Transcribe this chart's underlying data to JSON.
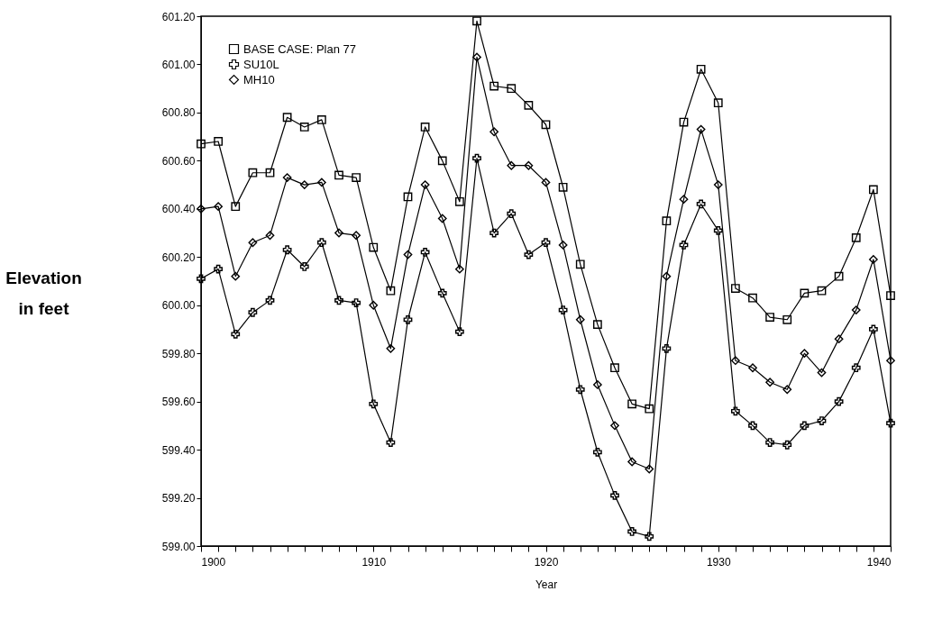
{
  "chart_data": {
    "type": "line",
    "xlabel": "Year",
    "ylabel": "Elevation in feet",
    "x": [
      1900,
      1901,
      1902,
      1903,
      1904,
      1905,
      1906,
      1907,
      1908,
      1909,
      1910,
      1911,
      1912,
      1913,
      1914,
      1915,
      1916,
      1917,
      1918,
      1919,
      1920,
      1921,
      1922,
      1923,
      1924,
      1925,
      1926,
      1927,
      1928,
      1929,
      1930,
      1931,
      1932,
      1933,
      1934,
      1935,
      1936,
      1937,
      1938,
      1939,
      1940
    ],
    "series": [
      {
        "name": "BASE CASE: Plan 77",
        "color": "#000000",
        "marker": "square",
        "values": [
          600.67,
          600.68,
          600.41,
          600.55,
          600.55,
          600.78,
          600.74,
          600.77,
          600.54,
          600.53,
          600.24,
          600.06,
          600.45,
          600.74,
          600.6,
          600.43,
          601.18,
          600.91,
          600.9,
          600.83,
          600.75,
          600.49,
          600.17,
          599.92,
          599.74,
          599.59,
          599.57,
          600.35,
          600.76,
          600.98,
          600.84,
          600.07,
          600.03,
          599.95,
          599.94,
          600.05,
          600.06,
          600.12,
          600.28,
          600.48,
          600.04
        ]
      },
      {
        "name": "SU10L",
        "color": "#000000",
        "marker": "cross",
        "values": [
          600.11,
          600.15,
          599.88,
          599.97,
          600.02,
          600.23,
          600.16,
          600.26,
          600.02,
          600.01,
          599.59,
          599.43,
          599.94,
          600.22,
          600.05,
          599.89,
          600.61,
          600.3,
          600.38,
          600.21,
          600.26,
          599.98,
          599.65,
          599.39,
          599.21,
          599.06,
          599.04,
          599.82,
          600.25,
          600.42,
          600.31,
          599.56,
          599.5,
          599.43,
          599.42,
          599.5,
          599.52,
          599.6,
          599.74,
          599.9,
          599.51
        ]
      },
      {
        "name": "MH10",
        "color": "#000000",
        "marker": "diamond",
        "values": [
          600.4,
          600.41,
          600.12,
          600.26,
          600.29,
          600.53,
          600.5,
          600.51,
          600.3,
          600.29,
          600.0,
          599.82,
          600.21,
          600.5,
          600.36,
          600.15,
          601.03,
          600.72,
          600.58,
          600.58,
          600.51,
          600.25,
          599.94,
          599.67,
          599.5,
          599.35,
          599.32,
          600.12,
          600.44,
          600.73,
          600.5,
          599.77,
          599.74,
          599.68,
          599.65,
          599.8,
          599.72,
          599.86,
          599.98,
          600.19,
          599.77
        ]
      }
    ],
    "xlim": [
      1900,
      1940
    ],
    "xticks": [
      1900,
      {
        "value": 1901,
        "label": null
      },
      {
        "value": 1902,
        "label": null
      },
      {
        "value": 1903,
        "label": null
      },
      {
        "value": 1904,
        "label": null
      },
      {
        "value": 1905,
        "label": null
      },
      {
        "value": 1906,
        "label": null
      },
      {
        "value": 1907,
        "label": null
      },
      {
        "value": 1908,
        "label": null
      },
      {
        "value": 1909,
        "label": null
      },
      1910,
      {
        "value": 1911,
        "label": null
      },
      {
        "value": 1912,
        "label": null
      },
      {
        "value": 1913,
        "label": null
      },
      {
        "value": 1914,
        "label": null
      },
      {
        "value": 1915,
        "label": null
      },
      {
        "value": 1916,
        "label": null
      },
      {
        "value": 1917,
        "label": null
      },
      {
        "value": 1918,
        "label": null
      },
      {
        "value": 1919,
        "label": null
      },
      1920,
      {
        "value": 1921,
        "label": null
      },
      {
        "value": 1922,
        "label": null
      },
      {
        "value": 1923,
        "label": null
      },
      {
        "value": 1924,
        "label": null
      },
      {
        "value": 1925,
        "label": null
      },
      {
        "value": 1926,
        "label": null
      },
      {
        "value": 1927,
        "label": null
      },
      {
        "value": 1928,
        "label": null
      },
      {
        "value": 1929,
        "label": null
      },
      1930,
      {
        "value": 1931,
        "label": null
      },
      {
        "value": 1932,
        "label": null
      },
      {
        "value": 1933,
        "label": null
      },
      {
        "value": 1934,
        "label": null
      },
      {
        "value": 1935,
        "label": null
      },
      {
        "value": 1936,
        "label": null
      },
      {
        "value": 1937,
        "label": null
      },
      {
        "value": 1938,
        "label": null
      },
      {
        "value": 1939,
        "label": null
      },
      1940
    ],
    "ylim": [
      599.0,
      601.2
    ],
    "yticks": [
      {
        "value": 599.0,
        "label": "599.00"
      },
      {
        "value": 599.2,
        "label": "599.20"
      },
      {
        "value": 599.4,
        "label": "599.40"
      },
      {
        "value": 599.6,
        "label": "599.60"
      },
      {
        "value": 599.8,
        "label": "599.80"
      },
      {
        "value": 600.0,
        "label": "600.00"
      },
      {
        "value": 600.2,
        "label": "600.20"
      },
      {
        "value": 600.4,
        "label": "600.40"
      },
      {
        "value": 600.6,
        "label": "600.60"
      },
      {
        "value": 600.8,
        "label": "600.80"
      },
      {
        "value": 601.0,
        "label": "601.00"
      },
      {
        "value": 601.2,
        "label": "601.20"
      }
    ],
    "grid": false,
    "legend": "top left",
    "line_style": "solid"
  }
}
